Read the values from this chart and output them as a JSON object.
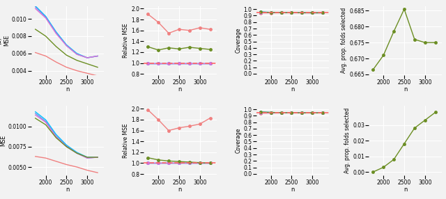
{
  "x": [
    1750,
    2000,
    2250,
    2500,
    2750,
    3000,
    3250
  ],
  "row_a": {
    "mse": {
      "salmon": [
        0.0061,
        0.0057,
        0.005,
        0.0044,
        0.004,
        0.0037,
        0.0034
      ],
      "cyan": [
        0.0115,
        0.0103,
        0.0085,
        0.007,
        0.006,
        0.0055,
        0.0057
      ],
      "blue": [
        0.0114,
        0.0102,
        0.0084,
        0.0069,
        0.0059,
        0.0055,
        0.0057
      ],
      "magenta": [
        0.0112,
        0.0101,
        0.0083,
        0.0069,
        0.0059,
        0.0055,
        0.0057
      ],
      "green": [
        0.0088,
        0.008,
        0.0068,
        0.0058,
        0.0052,
        0.0048,
        0.0044
      ]
    },
    "rel_mse": {
      "salmon": [
        1.9,
        1.75,
        1.55,
        1.62,
        1.6,
        1.65,
        1.62
      ],
      "cyan": [
        1.0,
        1.0,
        1.0,
        1.0,
        1.0,
        1.0,
        1.0
      ],
      "blue": [
        1.0,
        1.0,
        1.0,
        1.0,
        1.0,
        1.0,
        1.0
      ],
      "magenta": [
        1.0,
        1.0,
        1.0,
        1.0,
        1.0,
        1.0,
        1.0
      ],
      "green": [
        1.3,
        1.24,
        1.28,
        1.26,
        1.29,
        1.27,
        1.25
      ]
    },
    "coverage": {
      "salmon": [
        0.942,
        0.943,
        0.944,
        0.945,
        0.944,
        0.944,
        0.944
      ],
      "cyan": [
        0.96,
        0.95,
        0.948,
        0.946,
        0.945,
        0.944,
        0.944
      ],
      "blue": [
        0.95,
        0.948,
        0.946,
        0.945,
        0.945,
        0.944,
        0.944
      ],
      "magenta": [
        0.948,
        0.947,
        0.945,
        0.944,
        0.944,
        0.944,
        0.944
      ],
      "green": [
        0.955,
        0.95,
        0.947,
        0.946,
        0.945,
        0.944,
        0.944
      ]
    },
    "avg_folds": {
      "green": [
        0.6665,
        0.671,
        0.6785,
        0.6855,
        0.676,
        0.675,
        0.675
      ]
    }
  },
  "row_b": {
    "mse": {
      "salmon": [
        0.0063,
        0.0061,
        0.0057,
        0.0053,
        0.005,
        0.0046,
        0.0043
      ],
      "cyan": [
        0.0118,
        0.0108,
        0.009,
        0.0077,
        0.0068,
        0.0062,
        0.0062
      ],
      "blue": [
        0.0116,
        0.0106,
        0.0088,
        0.0076,
        0.0067,
        0.0061,
        0.0062
      ],
      "magenta": [
        0.0114,
        0.0105,
        0.0087,
        0.0075,
        0.0067,
        0.0061,
        0.0062
      ],
      "green": [
        0.011,
        0.0102,
        0.0086,
        0.0075,
        0.0067,
        0.0062,
        0.0062
      ]
    },
    "rel_mse": {
      "salmon": [
        1.98,
        1.8,
        1.6,
        1.65,
        1.68,
        1.72,
        1.83
      ],
      "cyan": [
        1.0,
        1.0,
        1.0,
        1.0,
        1.0,
        1.0,
        1.0
      ],
      "blue": [
        1.0,
        1.0,
        1.0,
        1.0,
        1.0,
        1.0,
        1.0
      ],
      "magenta": [
        1.0,
        1.0,
        1.0,
        1.0,
        1.0,
        1.0,
        1.0
      ],
      "green": [
        1.1,
        1.06,
        1.04,
        1.03,
        1.02,
        1.01,
        1.0
      ]
    },
    "coverage": {
      "salmon": [
        0.94,
        0.942,
        0.944,
        0.944,
        0.944,
        0.944,
        0.944
      ],
      "cyan": [
        0.96,
        0.952,
        0.948,
        0.946,
        0.945,
        0.944,
        0.944
      ],
      "blue": [
        0.95,
        0.948,
        0.946,
        0.945,
        0.945,
        0.944,
        0.944
      ],
      "magenta": [
        0.948,
        0.946,
        0.945,
        0.944,
        0.944,
        0.944,
        0.944
      ],
      "green": [
        0.958,
        0.952,
        0.948,
        0.946,
        0.945,
        0.944,
        0.944
      ]
    },
    "avg_folds": {
      "green": [
        0.0,
        0.003,
        0.008,
        0.018,
        0.028,
        0.033,
        0.038
      ]
    }
  },
  "colors": {
    "salmon": "#F08080",
    "cyan": "#00BFFF",
    "blue": "#6495ED",
    "magenta": "#DA70D6",
    "green": "#6B8E23",
    "red_dashed": "#FF6666"
  },
  "bg_color": "#F2F2F2",
  "xlabel": "n",
  "xticks": [
    2000,
    2500,
    3000
  ]
}
